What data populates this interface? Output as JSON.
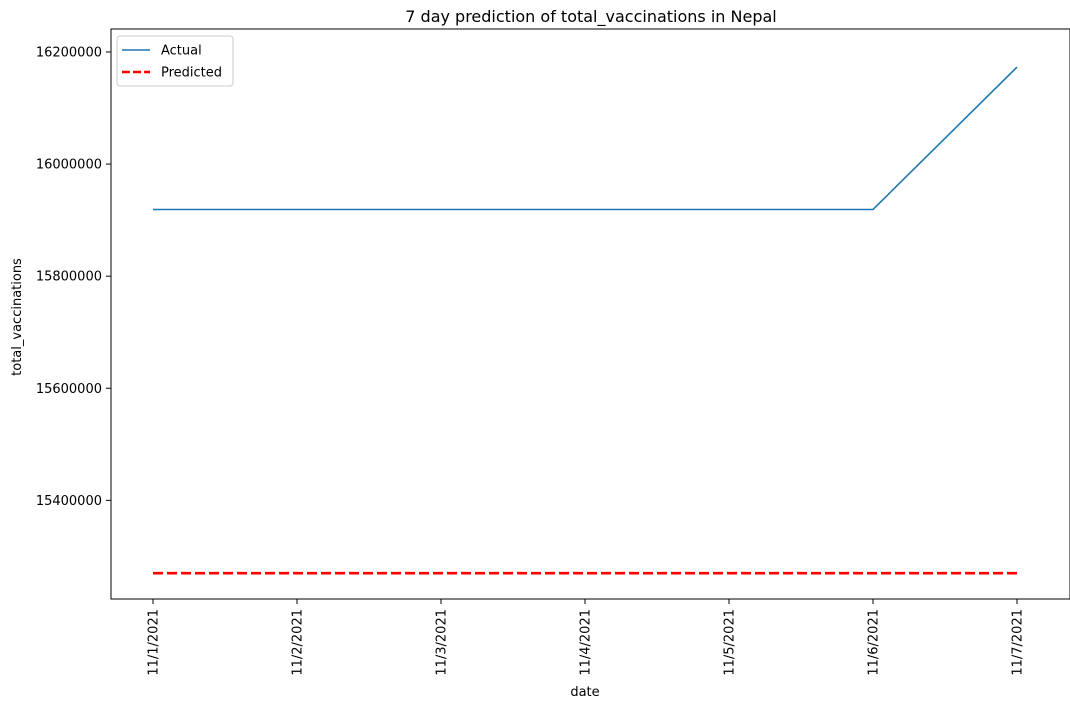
{
  "chart_data": {
    "type": "line",
    "title": "7 day prediction of total_vaccinations in Nepal",
    "xlabel": "date",
    "ylabel": "total_vaccinations",
    "x": [
      "11/1/2021",
      "11/2/2021",
      "11/3/2021",
      "11/4/2021",
      "11/5/2021",
      "11/6/2021",
      "11/7/2021"
    ],
    "yticks": [
      15400000,
      15600000,
      15800000,
      16000000,
      16200000
    ],
    "ytick_labels": [
      "15400000",
      "15600000",
      "15800000",
      "16000000",
      "16200000"
    ],
    "ylim": [
      15224000,
      16241000
    ],
    "grid": false,
    "legend_position": "top-left",
    "series": [
      {
        "name": "Actual",
        "color": "#1f77b4",
        "style": "solid",
        "values": [
          15919000,
          15919000,
          15919000,
          15919000,
          15919000,
          15919000,
          16173000
        ]
      },
      {
        "name": "Predicted",
        "color": "#ff0000",
        "style": "dashed",
        "values": [
          15270000,
          15270000,
          15270000,
          15270000,
          15270000,
          15270000,
          15270000
        ]
      }
    ]
  }
}
